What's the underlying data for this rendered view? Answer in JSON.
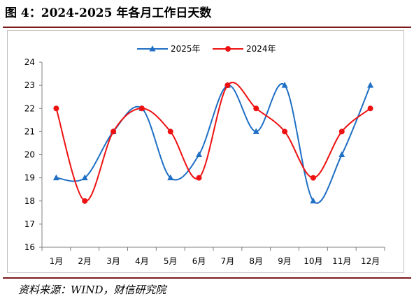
{
  "figure": {
    "title": "图 4：2024-2025 年各月工作日天数",
    "source": "资料来源：WIND，财信研究院"
  },
  "colors": {
    "series_2025": "#1f6fc4",
    "series_2024": "#ee1111",
    "rule": "#7a1a1a"
  },
  "chart_data": {
    "type": "line",
    "title": "",
    "xlabel": "",
    "ylabel": "",
    "categories": [
      "1月",
      "2月",
      "3月",
      "4月",
      "5月",
      "6月",
      "7月",
      "8月",
      "9月",
      "10月",
      "11月",
      "12月"
    ],
    "ylim": [
      16,
      24
    ],
    "yticks": [
      16,
      17,
      18,
      19,
      20,
      21,
      22,
      23,
      24
    ],
    "smooth": true,
    "grid": false,
    "legend": "top-center",
    "series": [
      {
        "name": "2025年",
        "marker": "triangle",
        "color": "#1f6fc4",
        "values": [
          19,
          19,
          21,
          22,
          19,
          20,
          23,
          21,
          23,
          18,
          20,
          23
        ]
      },
      {
        "name": "2024年",
        "marker": "circle",
        "color": "#ee1111",
        "values": [
          22,
          18,
          21,
          22,
          21,
          19,
          23,
          22,
          21,
          19,
          21,
          22
        ]
      }
    ]
  }
}
